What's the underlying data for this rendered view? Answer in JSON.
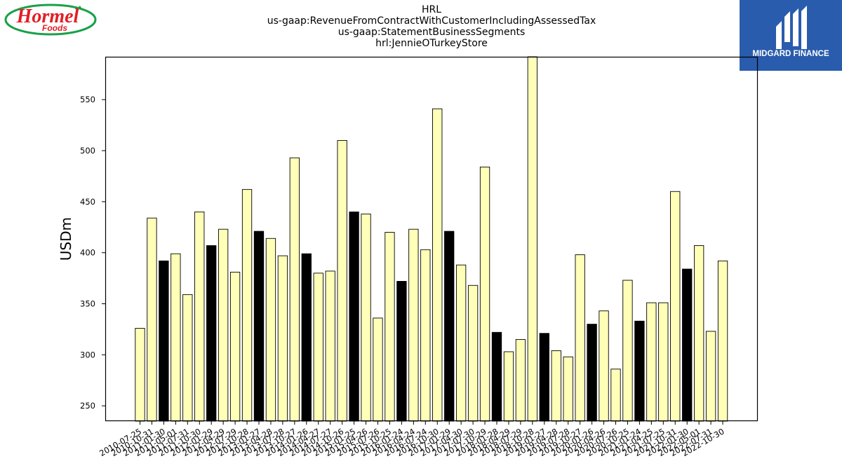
{
  "header": {
    "title_lines": [
      "HRL",
      "us-gaap:RevenueFromContractWithCustomerIncludingAssessedTax",
      "us-gaap:StatementBusinessSegments",
      "hrl:JennieOTurkeyStore"
    ]
  },
  "logos": {
    "left": {
      "word": "Hormel",
      "sub": "Foods",
      "color": "#e21e26",
      "ring_color": "#1aa049"
    },
    "right": {
      "text": "MIDGARD FINANCE",
      "bg_color": "#2a5cad"
    }
  },
  "chart_data": {
    "type": "bar",
    "title": "",
    "xlabel": "",
    "ylabel": "USDm",
    "ylim": [
      235,
      592
    ],
    "yticks": [
      250,
      300,
      350,
      400,
      450,
      500,
      550
    ],
    "grid": false,
    "bar_colors": {
      "default": "#ffffb8",
      "highlight": "#000000",
      "edge": "#000000"
    },
    "categories": [
      "2010-07-25",
      "2010-10-31",
      "2011-01-30",
      "2011-05-01",
      "2011-07-31",
      "2011-10-30",
      "2012-01-29",
      "2012-04-29",
      "2012-07-29",
      "2012-10-28",
      "2013-01-27",
      "2013-04-28",
      "2013-07-28",
      "2013-10-27",
      "2014-01-26",
      "2014-04-27",
      "2014-07-27",
      "2014-10-26",
      "2015-01-25",
      "2015-04-26",
      "2015-07-26",
      "2015-10-25",
      "2016-01-24",
      "2016-04-24",
      "2016-07-24",
      "2016-10-30",
      "2017-01-29",
      "2017-04-30",
      "2017-07-30",
      "2017-10-29",
      "2018-01-28",
      "2018-04-29",
      "2018-07-29",
      "2018-10-28",
      "2019-01-27",
      "2019-04-28",
      "2019-07-28",
      "2019-10-27",
      "2020-01-26",
      "2020-04-26",
      "2020-07-26",
      "2020-10-25",
      "2021-01-24",
      "2021-04-25",
      "2021-07-25",
      "2021-10-31",
      "2022-01-30",
      "2022-05-01",
      "2022-07-31",
      "2022-10-30"
    ],
    "values": [
      326,
      434,
      392,
      399,
      359,
      440,
      407,
      423,
      381,
      462,
      421,
      414,
      397,
      493,
      399,
      380,
      382,
      510,
      440,
      438,
      336,
      420,
      372,
      423,
      403,
      541,
      421,
      388,
      368,
      484,
      322,
      303,
      315,
      592,
      321,
      304,
      298,
      398,
      330,
      343,
      286,
      373,
      333,
      351,
      351,
      460,
      384,
      407,
      323,
      392
    ],
    "highlight": [
      false,
      false,
      true,
      false,
      false,
      false,
      true,
      false,
      false,
      false,
      true,
      false,
      false,
      false,
      true,
      false,
      false,
      false,
      true,
      false,
      false,
      false,
      true,
      false,
      false,
      false,
      true,
      false,
      false,
      false,
      true,
      false,
      false,
      false,
      true,
      false,
      false,
      false,
      true,
      false,
      false,
      false,
      true,
      false,
      false,
      false,
      true,
      false,
      false,
      false
    ]
  }
}
